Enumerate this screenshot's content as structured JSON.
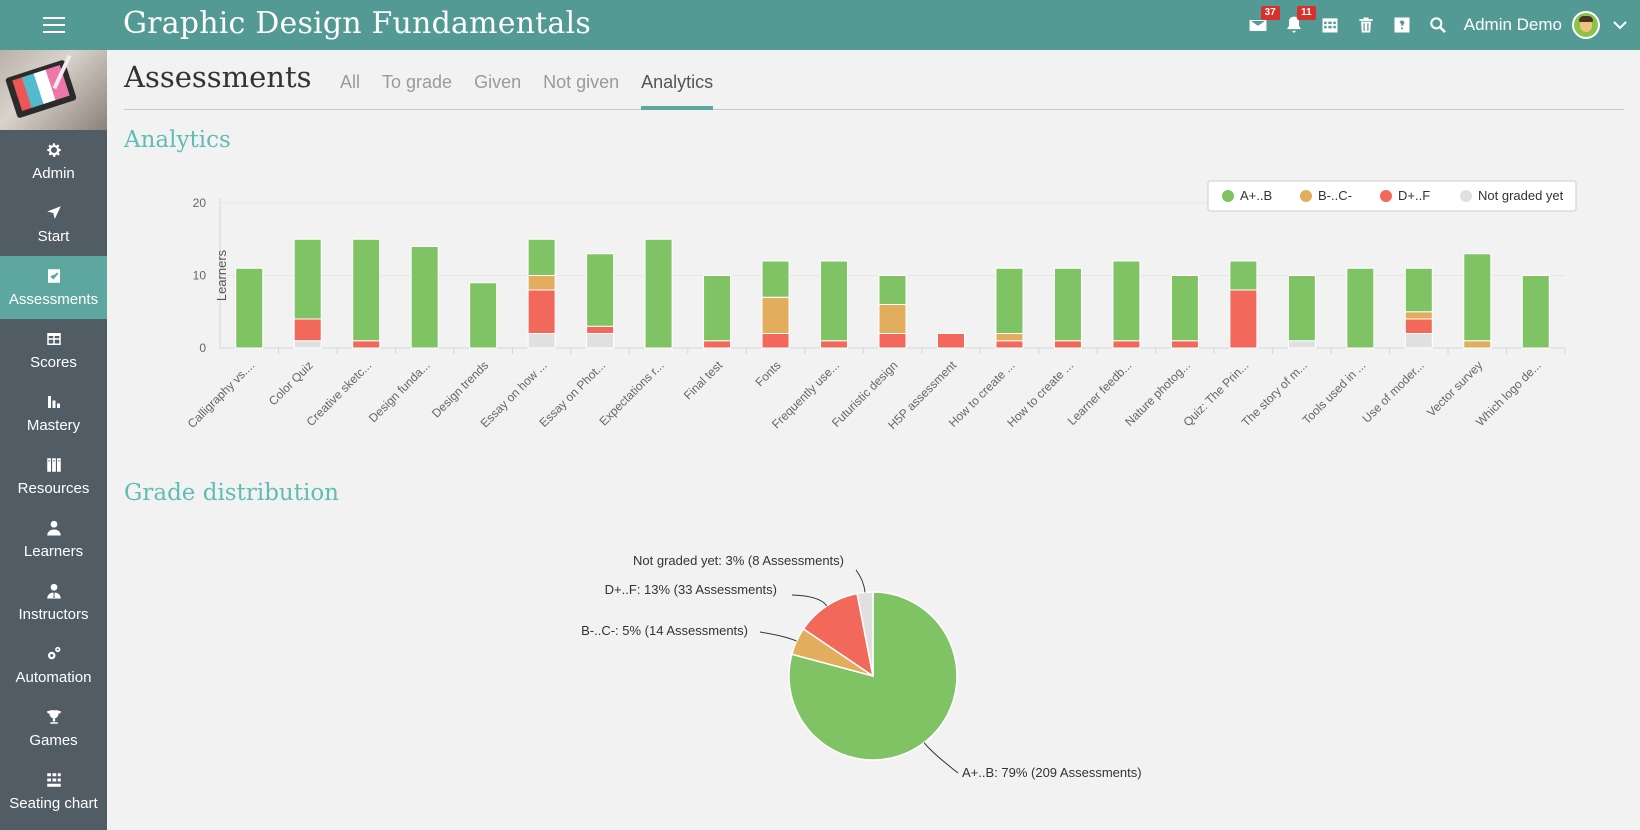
{
  "header": {
    "course_title": "Graphic Design Fundamentals",
    "user_name": "Admin Demo",
    "messages_badge": "37",
    "notifications_badge": "11",
    "icons": [
      "menu-icon",
      "mail-icon",
      "bell-icon",
      "calendar-icon",
      "trash-icon",
      "help-icon",
      "search-icon",
      "chevron-down-icon"
    ]
  },
  "sidebar": {
    "items": [
      {
        "label": "Admin",
        "icon": "gear-icon"
      },
      {
        "label": "Start",
        "icon": "navigation-arrow-icon"
      },
      {
        "label": "Assessments",
        "icon": "check-square-icon",
        "active": true
      },
      {
        "label": "Scores",
        "icon": "scores-table-icon"
      },
      {
        "label": "Mastery",
        "icon": "bar-chart-icon"
      },
      {
        "label": "Resources",
        "icon": "books-icon"
      },
      {
        "label": "Learners",
        "icon": "learner-icon"
      },
      {
        "label": "Instructors",
        "icon": "instructor-icon"
      },
      {
        "label": "Automation",
        "icon": "gears-icon"
      },
      {
        "label": "Games",
        "icon": "trophy-icon"
      },
      {
        "label": "Seating chart",
        "icon": "seating-chart-icon"
      }
    ]
  },
  "page": {
    "title": "Assessments",
    "tabs": [
      {
        "label": "All"
      },
      {
        "label": "To grade"
      },
      {
        "label": "Given"
      },
      {
        "label": "Not given"
      },
      {
        "label": "Analytics",
        "active": true
      }
    ],
    "analytics_title": "Analytics",
    "distribution_title": "Grade distribution"
  },
  "chart_data": [
    {
      "type": "bar",
      "stacked": true,
      "ylabel": "Learners",
      "ylim": [
        0,
        20
      ],
      "yticks": [
        0,
        10,
        20
      ],
      "legend_position": "top-right",
      "categories": [
        "Calligraphy vs....",
        "Color Quiz",
        "Creative sketc...",
        "Design funda...",
        "Design trends",
        "Essay on how ...",
        "Essay on Phot...",
        "Expectations r...",
        "Final test",
        "Fonts",
        "Frequently use...",
        "Futuristic design",
        "H5P assessment",
        "How to create ...",
        "How to create ...",
        "Learner feedb...",
        "Nature photog...",
        "Quiz: The Prin...",
        "The story of m...",
        "Tools used in ...",
        "Use of moder...",
        "Vector survey",
        "Which logo de..."
      ],
      "series": [
        {
          "name": "Not graded yet",
          "color": "#e0e0e0",
          "values": [
            0,
            1,
            0,
            0,
            0,
            2,
            2,
            0,
            0,
            0,
            0,
            0,
            0,
            0,
            0,
            0,
            0,
            0,
            1,
            0,
            2,
            0,
            0
          ]
        },
        {
          "name": "D+..F",
          "color": "#f2685a",
          "values": [
            0,
            3,
            1,
            0,
            0,
            6,
            1,
            0,
            1,
            2,
            1,
            2,
            2,
            1,
            1,
            1,
            1,
            8,
            0,
            0,
            2,
            0,
            0
          ]
        },
        {
          "name": "B-..C-",
          "color": "#e2ad5c",
          "values": [
            0,
            0,
            0,
            0,
            0,
            2,
            0,
            0,
            0,
            5,
            0,
            4,
            0,
            1,
            0,
            0,
            0,
            0,
            0,
            0,
            1,
            1,
            0
          ]
        },
        {
          "name": "A+..B",
          "color": "#7fc364",
          "values": [
            11,
            11,
            14,
            14,
            9,
            5,
            10,
            15,
            9,
            5,
            11,
            4,
            0,
            9,
            10,
            11,
            9,
            4,
            9,
            11,
            6,
            12,
            10
          ]
        }
      ],
      "legend_order": [
        "A+..B",
        "B-..C-",
        "D+..F",
        "Not graded yet"
      ]
    },
    {
      "type": "pie",
      "title": "Grade distribution",
      "slices": [
        {
          "name": "A+..B",
          "percent": 79,
          "count": 209,
          "color": "#7fc364",
          "label": "A+..B: 79% (209 Assessments)"
        },
        {
          "name": "B-..C-",
          "percent": 5,
          "count": 14,
          "color": "#e2ad5c",
          "label": "B-..C-: 5% (14 Assessments)"
        },
        {
          "name": "D+..F",
          "percent": 13,
          "count": 33,
          "color": "#f2685a",
          "label": "D+..F: 13% (33 Assessments)"
        },
        {
          "name": "Not graded yet",
          "percent": 3,
          "count": 8,
          "color": "#e0e0e0",
          "label": "Not graded yet: 3% (8 Assessments)"
        }
      ]
    }
  ]
}
